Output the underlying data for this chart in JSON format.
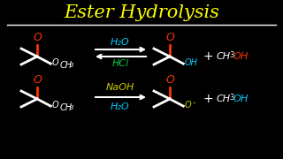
{
  "title": "Ester Hydrolysis",
  "title_color": "#FFFF00",
  "bg_color": "#000000",
  "line_color": "#FFFFFF",
  "top_reaction": {
    "reagent_above": "H₂O",
    "reagent_below": "HCl",
    "reagent_above_color": "#00CCFF",
    "reagent_below_color": "#00CC44",
    "arrow_color": "#FFFFFF",
    "double_arrow": true,
    "reactant_O_color": "#FF3300",
    "reactant_body_color": "#FFFFFF",
    "reactant_OCH3_O_color": "#FFFFFF",
    "reactant_OCH3_rest_color": "#FFFFFF",
    "product_O_color": "#FF3300",
    "product_body_color": "#FFFFFF",
    "product_OH_O_color": "#00CCFF",
    "product_OH_H_color": "#00CCFF",
    "plus_color": "#FFFFFF",
    "ch3oh_CH3_color": "#FFFFFF",
    "ch3oh_O_color": "#FF3300",
    "ch3oh_H_color": "#FF3300"
  },
  "bottom_reaction": {
    "reagent_above": "NaOH",
    "reagent_below": "H₂O",
    "reagent_above_color": "#CCCC00",
    "reagent_below_color": "#00CCFF",
    "arrow_color": "#FFFFFF",
    "double_arrow": false,
    "reactant_O_color": "#FF3300",
    "reactant_body_color": "#FFFFFF",
    "reactant_OCH3_O_color": "#FFFFFF",
    "reactant_OCH3_rest_color": "#FFFFFF",
    "product_O_color": "#FF3300",
    "product_body_color": "#FFFFFF",
    "product_Ominus_color": "#CCCC00",
    "plus_color": "#FFFFFF",
    "ch3oh_CH3_color": "#FFFFFF",
    "ch3oh_O_color": "#00CCFF",
    "ch3oh_H_color": "#00CCFF"
  }
}
